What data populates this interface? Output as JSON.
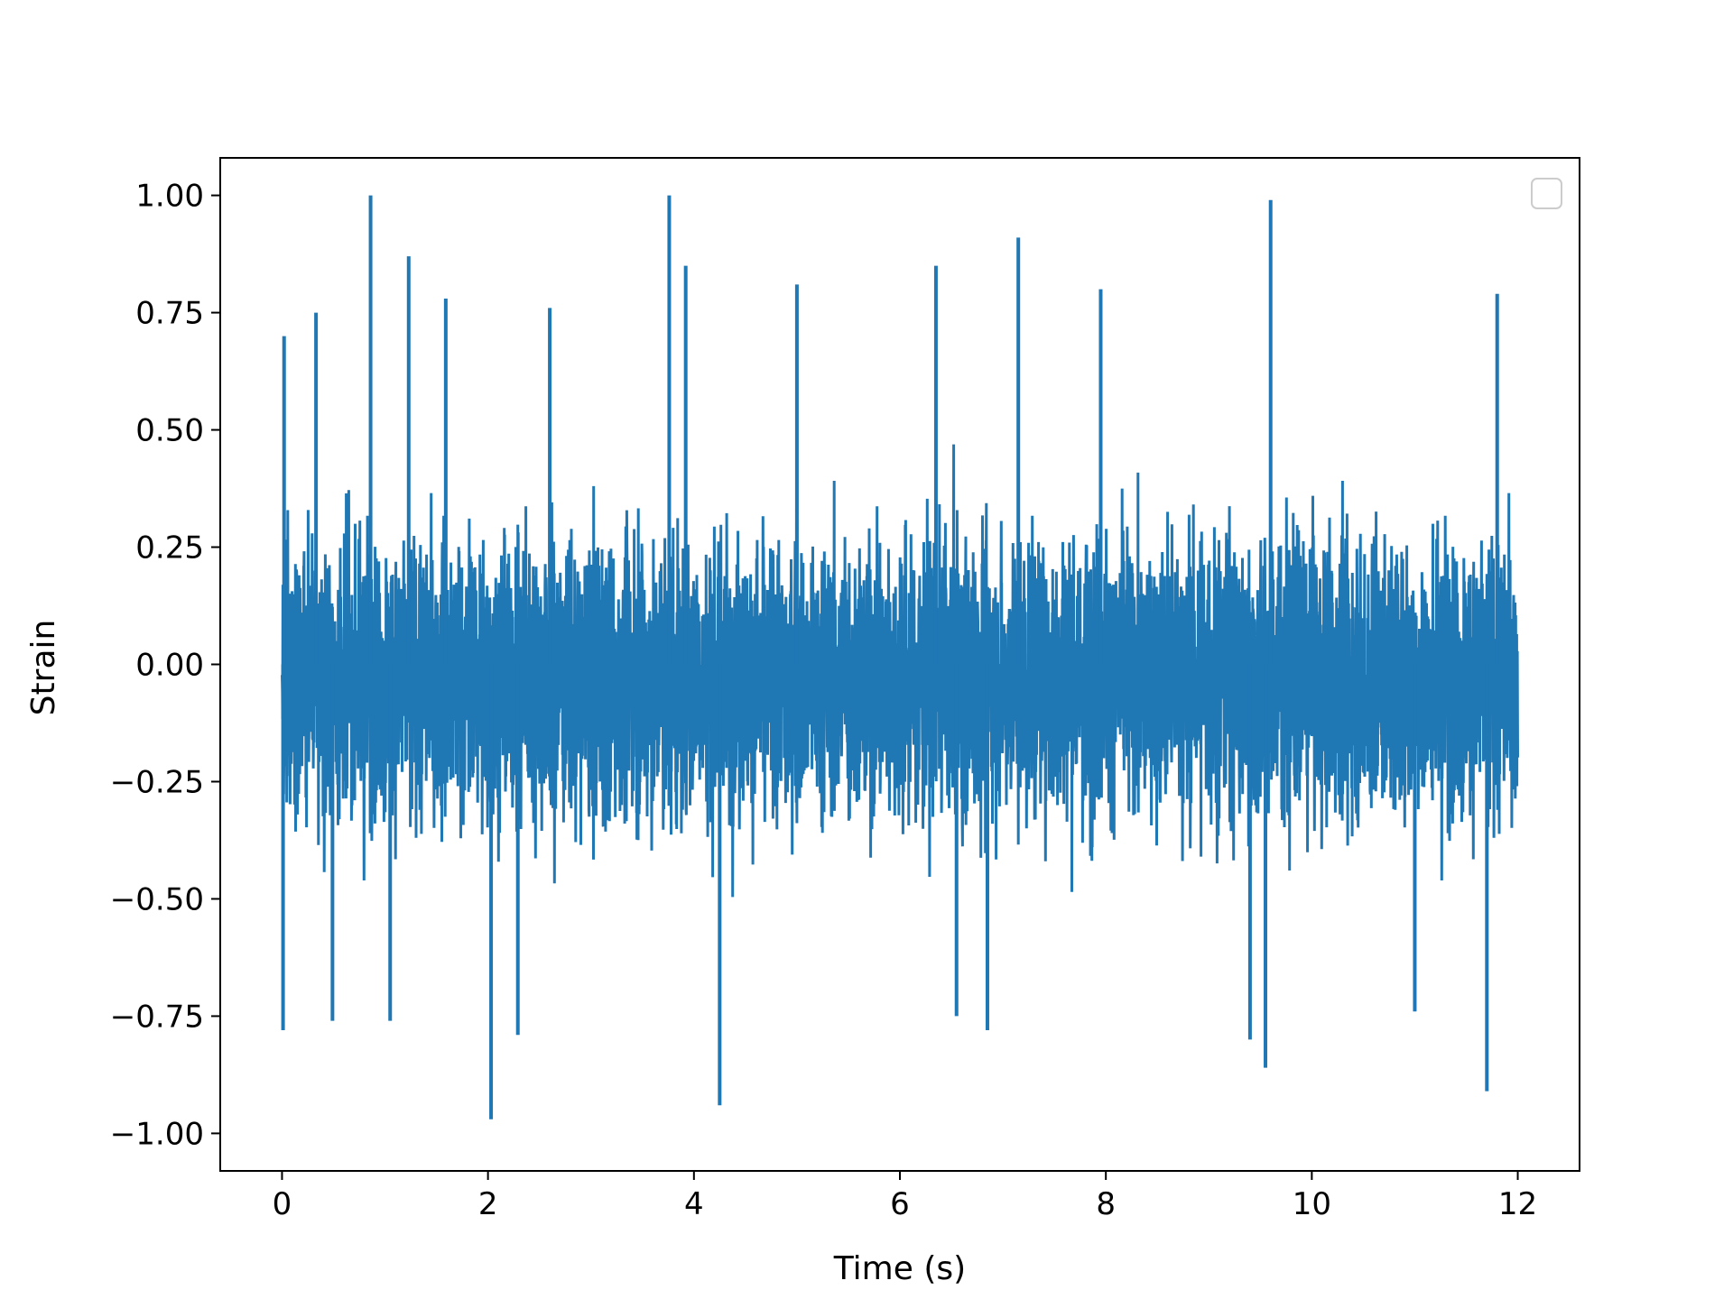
{
  "chart_data": {
    "type": "line",
    "title": "",
    "xlabel": "Time (s)",
    "ylabel": "Strain",
    "xlim": [
      -0.6,
      12.6
    ],
    "ylim": [
      -1.08,
      1.08
    ],
    "xticks": [
      0,
      2,
      4,
      6,
      8,
      10,
      12
    ],
    "xtick_labels": [
      "0",
      "2",
      "4",
      "6",
      "8",
      "10",
      "12"
    ],
    "yticks": [
      1.0,
      0.75,
      0.5,
      0.25,
      0.0,
      -0.25,
      -0.5,
      -0.75,
      -1.0
    ],
    "ytick_labels": [
      "1.00",
      "0.75",
      "0.50",
      "0.25",
      "0.00",
      "−0.25",
      "−0.50",
      "−0.75",
      "−1.00"
    ],
    "grid": false,
    "legend": {
      "placement": "top-right",
      "entries": []
    },
    "series": [
      {
        "color": "#1f77b4",
        "x_range": [
          0,
          12
        ],
        "typical_band": [
          -0.45,
          0.45
        ],
        "peaks": [
          {
            "x": 0.02,
            "y": 0.7
          },
          {
            "x": 0.33,
            "y": 0.75
          },
          {
            "x": 0.86,
            "y": 1.0
          },
          {
            "x": 1.23,
            "y": 0.87
          },
          {
            "x": 1.59,
            "y": 0.78
          },
          {
            "x": 2.6,
            "y": 0.76
          },
          {
            "x": 3.76,
            "y": 1.0
          },
          {
            "x": 3.92,
            "y": 0.85
          },
          {
            "x": 5.0,
            "y": 0.81
          },
          {
            "x": 6.35,
            "y": 0.85
          },
          {
            "x": 7.15,
            "y": 0.91
          },
          {
            "x": 7.95,
            "y": 0.8
          },
          {
            "x": 9.6,
            "y": 0.99
          },
          {
            "x": 11.8,
            "y": 0.79
          }
        ],
        "troughs": [
          {
            "x": 0.01,
            "y": -0.78
          },
          {
            "x": 0.49,
            "y": -0.76
          },
          {
            "x": 1.05,
            "y": -0.76
          },
          {
            "x": 2.03,
            "y": -0.97
          },
          {
            "x": 2.29,
            "y": -0.79
          },
          {
            "x": 4.25,
            "y": -0.94
          },
          {
            "x": 6.55,
            "y": -0.75
          },
          {
            "x": 6.85,
            "y": -0.78
          },
          {
            "x": 9.4,
            "y": -0.8
          },
          {
            "x": 9.55,
            "y": -0.86
          },
          {
            "x": 11.0,
            "y": -0.74
          },
          {
            "x": 11.7,
            "y": -0.91
          }
        ]
      }
    ]
  }
}
